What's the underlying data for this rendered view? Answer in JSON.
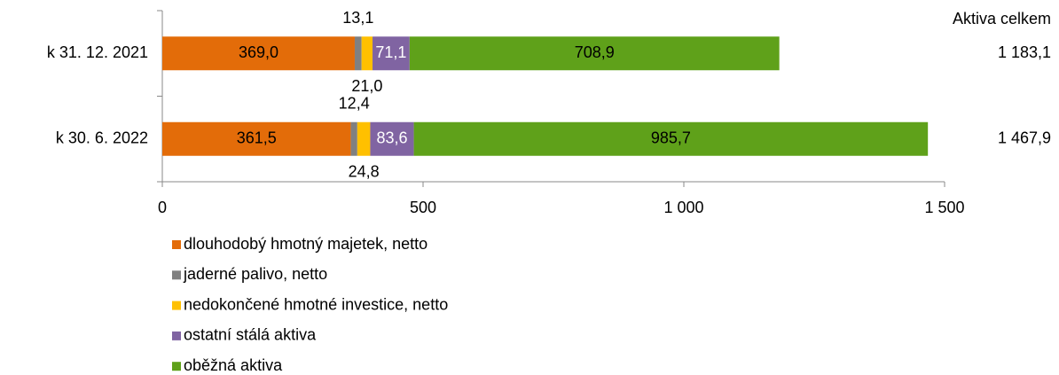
{
  "chart_data": {
    "type": "stacked_bar_horizontal",
    "categories": [
      "k 31. 12. 2021",
      "k 30. 6. 2022"
    ],
    "series": [
      {
        "name": "dlouhodobý hmotný majetek, netto",
        "color": "#e36c09",
        "values": [
          369.0,
          361.5
        ],
        "value_labels": [
          "369,0",
          "361,5"
        ]
      },
      {
        "name": "jaderné palivo, netto",
        "color": "#808080",
        "values": [
          13.1,
          12.4
        ],
        "value_labels": [
          "13,1",
          "12,4"
        ]
      },
      {
        "name": "nedokončené hmotné investice, netto",
        "color": "#ffc000",
        "values": [
          21.0,
          24.8
        ],
        "value_labels": [
          "21,0",
          "24,8"
        ]
      },
      {
        "name": "ostatní stálá aktiva",
        "color": "#8064a2",
        "values": [
          71.1,
          83.6
        ],
        "value_labels": [
          "71,1",
          "83,6"
        ]
      },
      {
        "name": "oběžná aktiva",
        "color": "#5fa11a",
        "values": [
          708.9,
          985.7
        ],
        "value_labels": [
          "708,9",
          "985,7"
        ]
      }
    ],
    "totals_title": "Aktiva celkem",
    "totals": [
      1183.1,
      1467.9
    ],
    "total_labels": [
      "1 183,1",
      "1 467,9"
    ],
    "xlim": [
      0,
      1500
    ],
    "xticks": [
      0,
      500,
      {
        "value": 1000,
        "label": "1 000"
      },
      {
        "value": 1500,
        "label": "1 500"
      }
    ],
    "legend": "bottom"
  }
}
